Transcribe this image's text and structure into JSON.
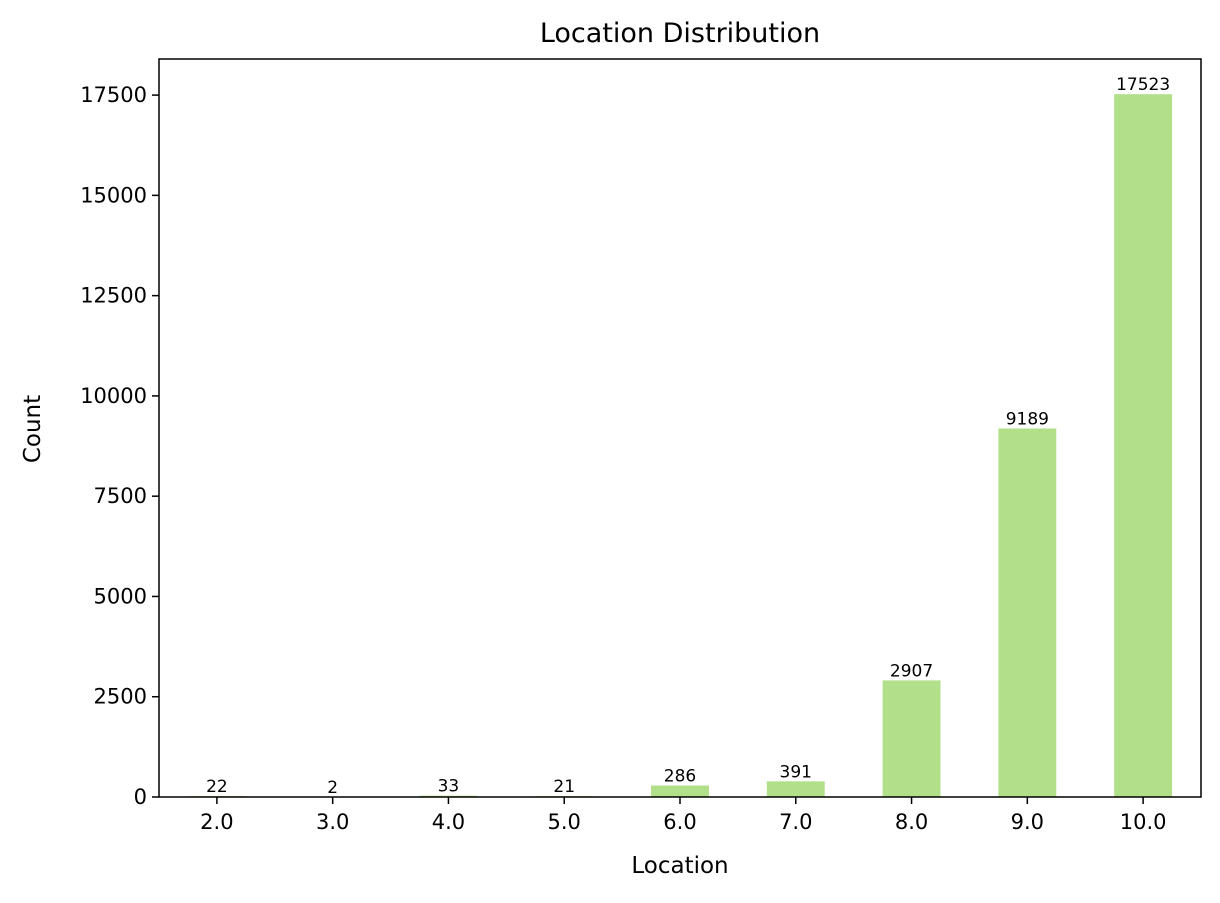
{
  "chart_data": {
    "type": "bar",
    "title": "Location Distribution",
    "xlabel": "Location",
    "ylabel": "Count",
    "categories": [
      "2.0",
      "3.0",
      "4.0",
      "5.0",
      "6.0",
      "7.0",
      "8.0",
      "9.0",
      "10.0"
    ],
    "values": [
      22,
      2,
      33,
      21,
      286,
      391,
      2907,
      9189,
      17523
    ],
    "ylim": [
      0,
      18400
    ],
    "yticks": [
      0,
      2500,
      5000,
      7500,
      10000,
      12500,
      15000,
      17500
    ],
    "bar_color": "#b2df8a",
    "grid": false,
    "legend": "none"
  }
}
